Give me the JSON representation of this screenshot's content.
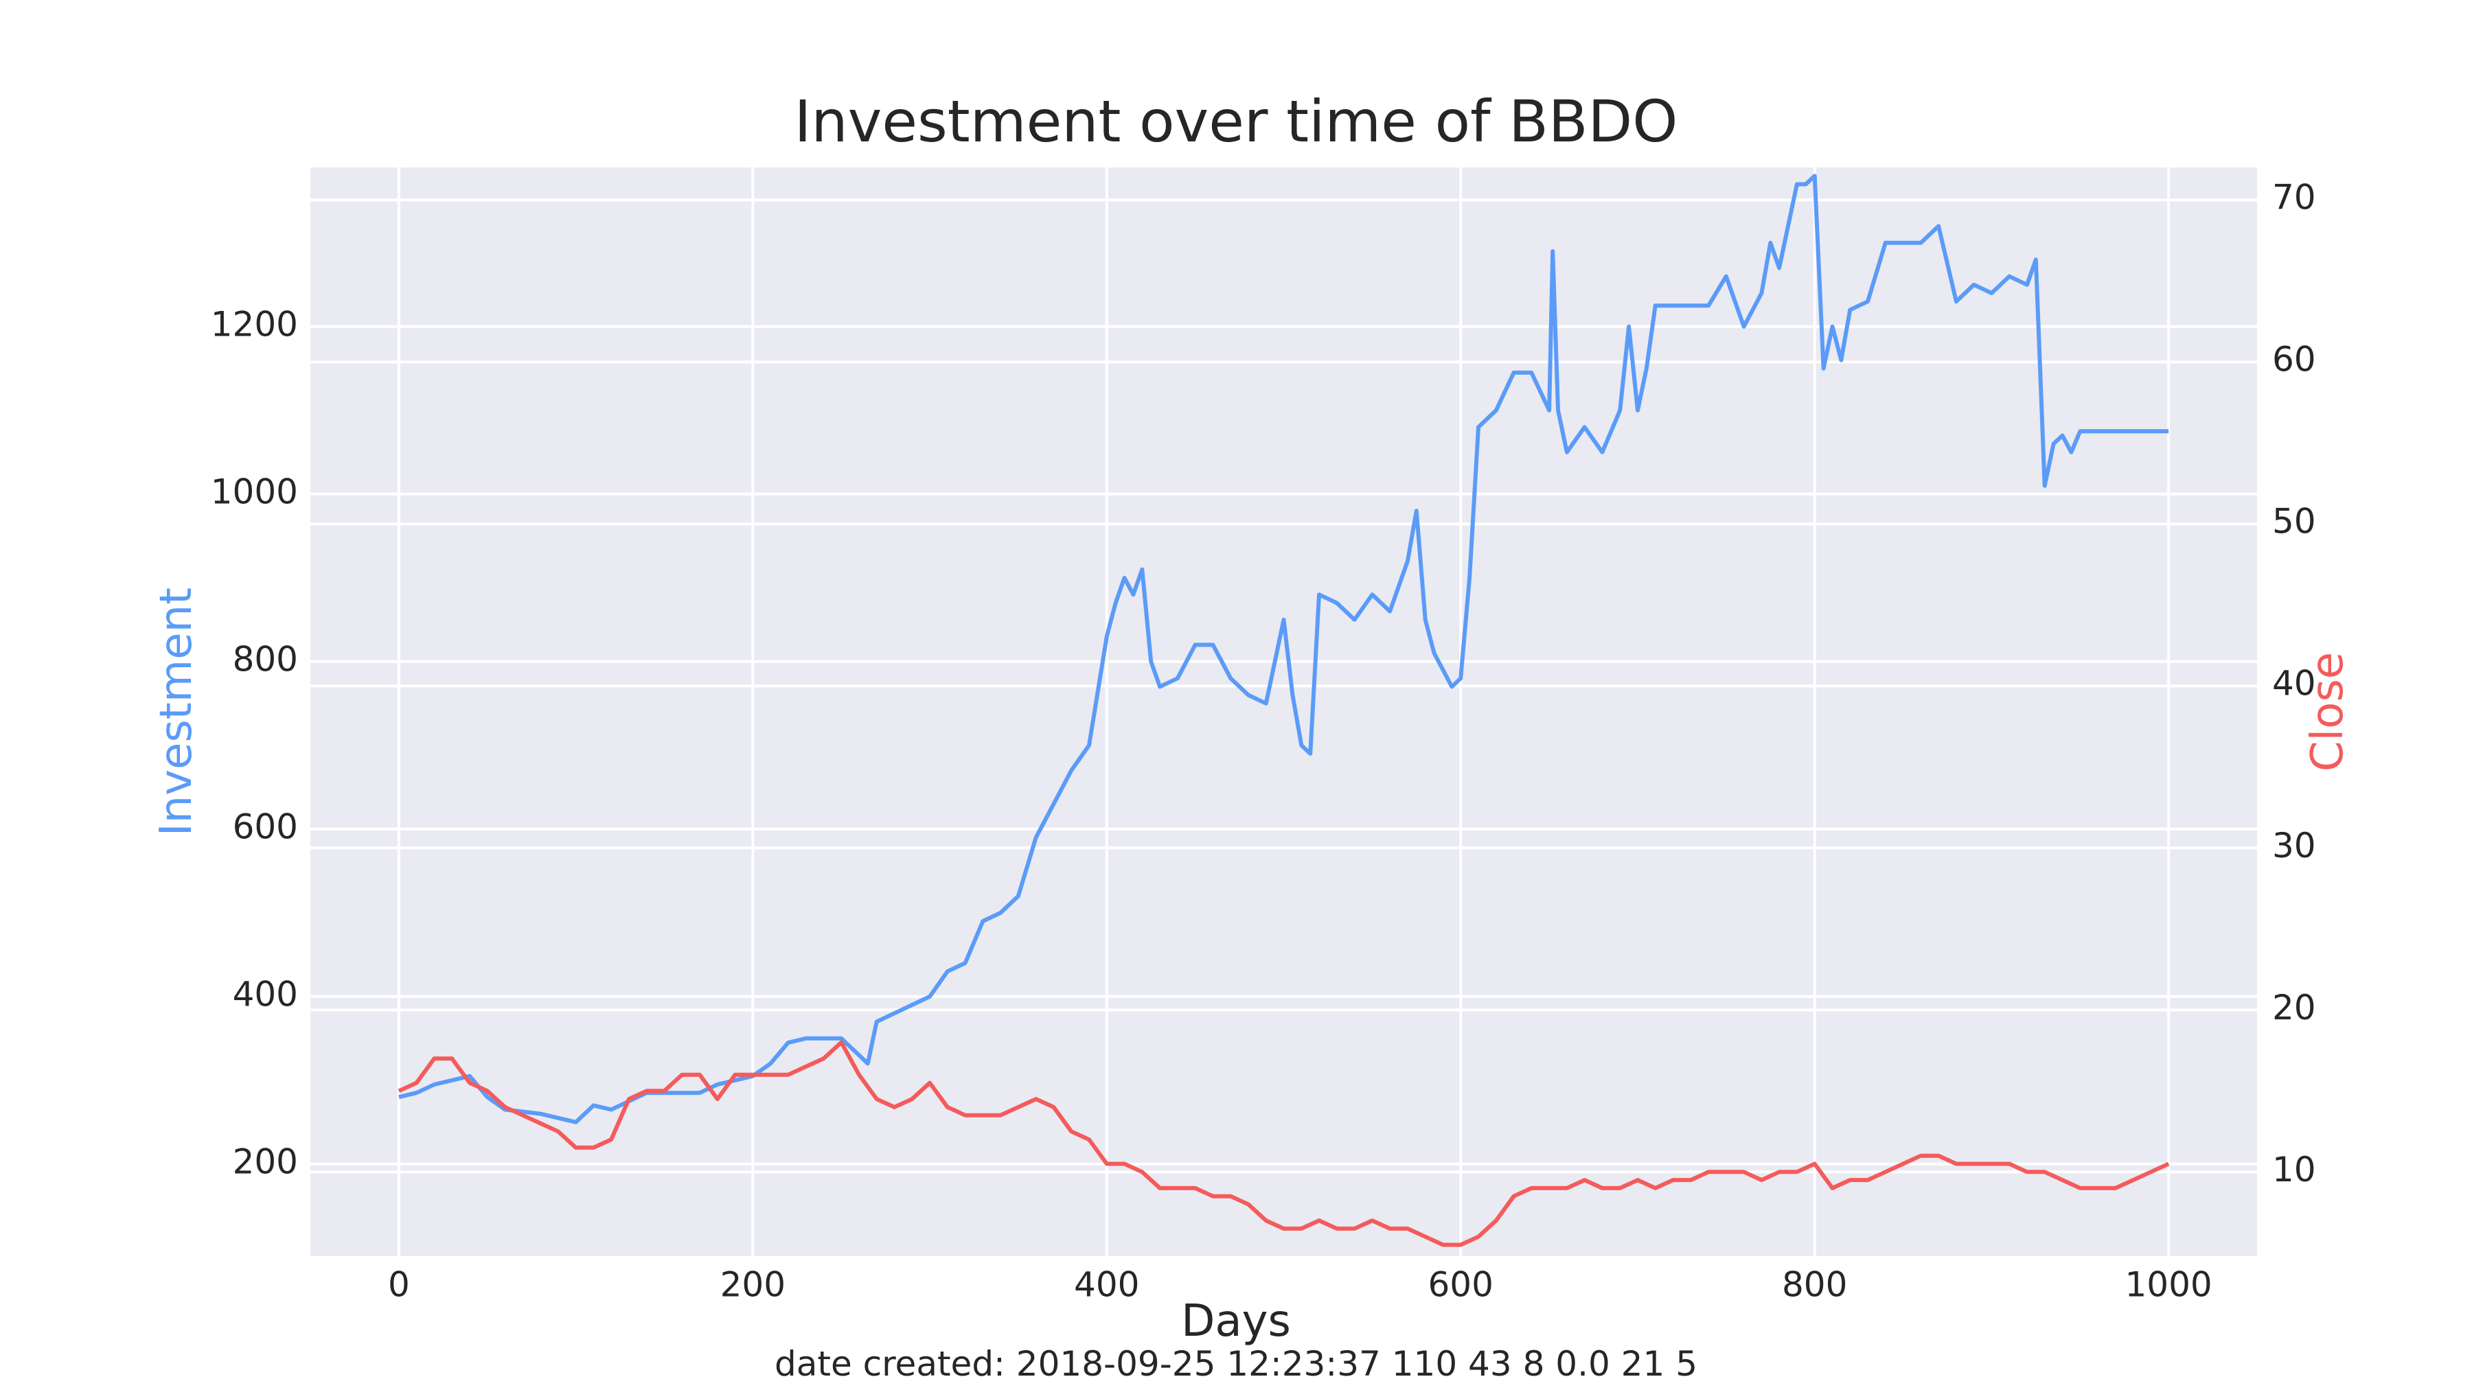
{
  "chart_data": {
    "type": "line",
    "title": "Investment over time of BBDO",
    "xlabel": "Days",
    "ylabel": "Investment",
    "ylabel_right": "Close",
    "footer": "date created: 2018-09-25 12:23:37 110 43 8 0.0 21 5",
    "xlim": [
      -50,
      1050
    ],
    "ylim": [
      90,
      1390
    ],
    "ylim_right": [
      4.8,
      72
    ],
    "x_ticks": [
      0,
      200,
      400,
      600,
      800,
      1000
    ],
    "y_ticks": [
      200,
      400,
      600,
      800,
      1000,
      1200
    ],
    "y_ticks_right": [
      10,
      20,
      30,
      40,
      50,
      60,
      70
    ],
    "grid": true,
    "colors": {
      "investment": "#5b9bf8",
      "close": "#f45b5b",
      "background": "#eaeaf2",
      "grid": "#ffffff"
    },
    "series": [
      {
        "axis": "left",
        "color": "#5b9bf8",
        "x": [
          0,
          10,
          20,
          40,
          50,
          60,
          80,
          100,
          110,
          120,
          140,
          170,
          180,
          200,
          210,
          220,
          230,
          240,
          250,
          260,
          265,
          270,
          280,
          300,
          310,
          320,
          330,
          340,
          350,
          360,
          370,
          380,
          390,
          400,
          405,
          410,
          415,
          420,
          425,
          430,
          440,
          450,
          460,
          470,
          480,
          490,
          500,
          505,
          510,
          515,
          520,
          530,
          540,
          550,
          560,
          570,
          575,
          580,
          585,
          590,
          595,
          600,
          605,
          610,
          620,
          630,
          640,
          650,
          652,
          655,
          660,
          670,
          680,
          690,
          695,
          700,
          705,
          710,
          720,
          740,
          750,
          760,
          770,
          775,
          780,
          790,
          795,
          800,
          805,
          810,
          815,
          820,
          830,
          840,
          850,
          860,
          870,
          880,
          890,
          900,
          910,
          920,
          925,
          930,
          935,
          940,
          945,
          950,
          960,
          980,
          1000
        ],
        "y": [
          280,
          285,
          295,
          305,
          280,
          265,
          260,
          250,
          270,
          265,
          285,
          285,
          295,
          305,
          320,
          345,
          350,
          350,
          350,
          330,
          320,
          370,
          380,
          400,
          430,
          440,
          490,
          500,
          520,
          590,
          630,
          670,
          700,
          830,
          870,
          900,
          880,
          910,
          800,
          770,
          780,
          820,
          820,
          780,
          760,
          750,
          850,
          760,
          700,
          690,
          880,
          870,
          850,
          880,
          860,
          920,
          980,
          850,
          810,
          790,
          770,
          780,
          900,
          1080,
          1100,
          1145,
          1145,
          1100,
          1290,
          1100,
          1050,
          1080,
          1050,
          1100,
          1200,
          1100,
          1150,
          1225,
          1225,
          1225,
          1260,
          1200,
          1240,
          1300,
          1270,
          1370,
          1370,
          1380,
          1150,
          1200,
          1160,
          1220,
          1230,
          1300,
          1300,
          1300,
          1320,
          1230,
          1250,
          1240,
          1260,
          1250,
          1280,
          1010,
          1060,
          1070,
          1050,
          1075,
          1075,
          1075,
          1075
        ]
      },
      {
        "axis": "right",
        "color": "#f45b5b",
        "x": [
          0,
          10,
          20,
          30,
          40,
          50,
          60,
          70,
          80,
          90,
          100,
          110,
          120,
          130,
          140,
          150,
          160,
          170,
          180,
          190,
          200,
          210,
          220,
          230,
          240,
          250,
          260,
          270,
          280,
          290,
          300,
          310,
          320,
          330,
          340,
          350,
          360,
          370,
          380,
          390,
          400,
          410,
          420,
          430,
          440,
          450,
          460,
          470,
          480,
          490,
          500,
          510,
          520,
          530,
          540,
          550,
          560,
          570,
          580,
          590,
          600,
          610,
          620,
          630,
          640,
          650,
          660,
          670,
          680,
          690,
          700,
          710,
          720,
          730,
          740,
          750,
          760,
          770,
          780,
          790,
          800,
          810,
          820,
          830,
          840,
          850,
          860,
          870,
          880,
          890,
          900,
          910,
          920,
          930,
          940,
          950,
          960,
          970,
          980,
          990,
          1000
        ],
        "y": [
          15,
          15.5,
          17,
          17,
          15.5,
          15,
          14,
          13.5,
          13,
          12.5,
          11.5,
          11.5,
          12,
          14.5,
          15,
          15,
          16,
          16,
          14.5,
          16,
          16,
          16,
          16,
          16.5,
          17,
          18,
          16,
          14.5,
          14,
          14.5,
          15.5,
          14,
          13.5,
          13.5,
          13.5,
          14,
          14.5,
          14,
          12.5,
          12,
          10.5,
          10.5,
          10,
          9,
          9,
          9,
          8.5,
          8.5,
          8,
          7,
          6.5,
          6.5,
          7,
          6.5,
          6.5,
          7,
          6.5,
          6.5,
          6,
          5.5,
          5.5,
          6,
          7,
          8.5,
          9,
          9,
          9,
          9.5,
          9,
          9,
          9.5,
          9,
          9.5,
          9.5,
          10,
          10,
          10,
          9.5,
          10,
          10,
          10.5,
          9,
          9.5,
          9.5,
          10,
          10.5,
          11,
          11,
          10.5,
          10.5,
          10.5,
          10.5,
          10,
          10,
          9.5,
          9,
          9,
          9,
          9.5,
          10,
          10.5
        ]
      }
    ]
  }
}
